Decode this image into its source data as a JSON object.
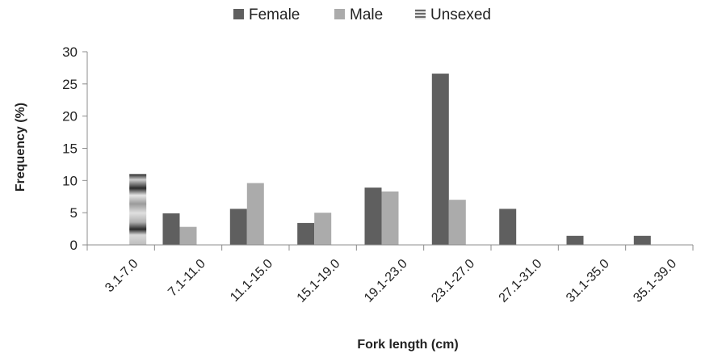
{
  "chart_data": {
    "type": "bar",
    "title": "",
    "xlabel": "Fork length (cm)",
    "ylabel": "Frequency (%)",
    "ylim": [
      0,
      30
    ],
    "yticks": [
      0,
      5,
      10,
      15,
      20,
      25,
      30
    ],
    "grid": false,
    "legend_position": "top-center",
    "categories": [
      "3.1-7.0",
      "7.1-11.0",
      "11.1-15.0",
      "15.1-19.0",
      "19.1-23.0",
      "23.1-27.0",
      "27.1-31.0",
      "31.1-35.0",
      "35.1-39.0"
    ],
    "series": [
      {
        "name": "Female",
        "color": "#5f5f5f",
        "values": [
          0,
          4.9,
          5.6,
          3.4,
          8.9,
          26.6,
          5.6,
          1.4,
          1.4
        ]
      },
      {
        "name": "Male",
        "color": "#ababab",
        "values": [
          0,
          2.8,
          9.6,
          5.0,
          8.3,
          7.0,
          0,
          0,
          0
        ]
      },
      {
        "name": "Unsexed",
        "color": "#8a8a8a",
        "pattern": "horizontal-stripes",
        "values": [
          11.0,
          0,
          0,
          0,
          0,
          0,
          0,
          0,
          0
        ]
      }
    ]
  }
}
